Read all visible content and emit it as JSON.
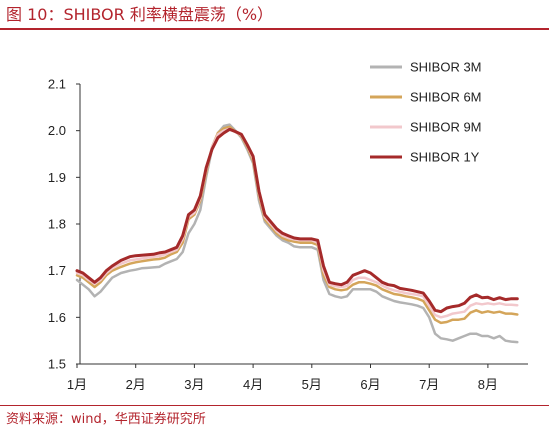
{
  "header": {
    "title": "图 10：SHIBOR 利率横盘震荡（%）"
  },
  "footer": {
    "source": "资料来源：wind，华西证券研究所"
  },
  "colors": {
    "accent": "#b3242d"
  },
  "chart_data": {
    "type": "line",
    "title": "图 10：SHIBOR 利率横盘震荡（%）",
    "xlabel": "",
    "ylabel": "",
    "x_ticks": [
      "1月",
      "2月",
      "3月",
      "4月",
      "5月",
      "6月",
      "7月",
      "8月"
    ],
    "xlim": [
      0,
      7.6
    ],
    "ylim": [
      1.5,
      2.1
    ],
    "y_ticks": [
      "1.5",
      "1.6",
      "1.7",
      "1.8",
      "1.9",
      "2.0",
      "2.1"
    ],
    "legend_position": "top-right",
    "grid": false,
    "series": [
      {
        "name": "SHIBOR 3M",
        "color": "#b3b3b3",
        "x": [
          0,
          0.1,
          0.2,
          0.3,
          0.4,
          0.5,
          0.6,
          0.75,
          0.9,
          1.0,
          1.1,
          1.2,
          1.3,
          1.4,
          1.5,
          1.6,
          1.7,
          1.8,
          1.9,
          2.0,
          2.1,
          2.2,
          2.3,
          2.4,
          2.5,
          2.6,
          2.7,
          2.8,
          2.9,
          3.0,
          3.1,
          3.2,
          3.3,
          3.4,
          3.5,
          3.6,
          3.7,
          3.8,
          3.9,
          4.0,
          4.1,
          4.2,
          4.3,
          4.4,
          4.5,
          4.6,
          4.7,
          4.8,
          4.9,
          5.0,
          5.1,
          5.2,
          5.3,
          5.4,
          5.5,
          5.6,
          5.7,
          5.8,
          5.9,
          6.0,
          6.1,
          6.2,
          6.3,
          6.4,
          6.5,
          6.6,
          6.7,
          6.8,
          6.9,
          7.0,
          7.1,
          7.2,
          7.3,
          7.4,
          7.5
        ],
        "y": [
          1.68,
          1.67,
          1.66,
          1.645,
          1.655,
          1.67,
          1.685,
          1.695,
          1.7,
          1.702,
          1.705,
          1.706,
          1.707,
          1.708,
          1.715,
          1.72,
          1.725,
          1.74,
          1.78,
          1.8,
          1.83,
          1.9,
          1.96,
          1.995,
          2.01,
          2.013,
          2.0,
          1.985,
          1.96,
          1.93,
          1.85,
          1.805,
          1.79,
          1.775,
          1.765,
          1.76,
          1.752,
          1.75,
          1.75,
          1.75,
          1.745,
          1.68,
          1.65,
          1.645,
          1.642,
          1.645,
          1.66,
          1.66,
          1.66,
          1.66,
          1.655,
          1.645,
          1.64,
          1.635,
          1.632,
          1.63,
          1.628,
          1.625,
          1.62,
          1.6,
          1.565,
          1.555,
          1.553,
          1.55,
          1.555,
          1.56,
          1.565,
          1.565,
          1.56,
          1.56,
          1.555,
          1.56,
          1.55,
          1.548,
          1.547
        ]
      },
      {
        "name": "SHIBOR 6M",
        "color": "#d4a55a",
        "x": [
          0,
          0.1,
          0.2,
          0.3,
          0.4,
          0.5,
          0.6,
          0.75,
          0.9,
          1.0,
          1.1,
          1.2,
          1.3,
          1.4,
          1.5,
          1.6,
          1.7,
          1.8,
          1.9,
          2.0,
          2.1,
          2.2,
          2.3,
          2.4,
          2.5,
          2.6,
          2.7,
          2.8,
          2.9,
          3.0,
          3.1,
          3.2,
          3.3,
          3.4,
          3.5,
          3.6,
          3.7,
          3.8,
          3.9,
          4.0,
          4.1,
          4.2,
          4.3,
          4.4,
          4.5,
          4.6,
          4.7,
          4.8,
          4.9,
          5.0,
          5.1,
          5.2,
          5.3,
          5.4,
          5.5,
          5.6,
          5.7,
          5.8,
          5.9,
          6.0,
          6.1,
          6.2,
          6.3,
          6.4,
          6.5,
          6.6,
          6.7,
          6.8,
          6.9,
          7.0,
          7.1,
          7.2,
          7.3,
          7.4,
          7.5
        ],
        "y": [
          1.69,
          1.685,
          1.675,
          1.665,
          1.675,
          1.69,
          1.7,
          1.708,
          1.715,
          1.718,
          1.72,
          1.722,
          1.724,
          1.725,
          1.728,
          1.735,
          1.74,
          1.76,
          1.81,
          1.82,
          1.85,
          1.91,
          1.965,
          1.995,
          2.005,
          2.008,
          1.998,
          1.988,
          1.965,
          1.935,
          1.86,
          1.81,
          1.795,
          1.78,
          1.77,
          1.765,
          1.762,
          1.76,
          1.76,
          1.76,
          1.755,
          1.69,
          1.665,
          1.66,
          1.658,
          1.66,
          1.67,
          1.675,
          1.675,
          1.672,
          1.668,
          1.66,
          1.655,
          1.65,
          1.648,
          1.645,
          1.643,
          1.64,
          1.635,
          1.615,
          1.595,
          1.588,
          1.59,
          1.595,
          1.595,
          1.597,
          1.61,
          1.615,
          1.61,
          1.613,
          1.61,
          1.612,
          1.608,
          1.608,
          1.606
        ]
      },
      {
        "name": "SHIBOR 9M",
        "color": "#f2c8cc",
        "x": [
          0,
          0.1,
          0.2,
          0.3,
          0.4,
          0.5,
          0.6,
          0.75,
          0.9,
          1.0,
          1.1,
          1.2,
          1.3,
          1.4,
          1.5,
          1.6,
          1.7,
          1.8,
          1.9,
          2.0,
          2.1,
          2.2,
          2.3,
          2.4,
          2.5,
          2.6,
          2.7,
          2.8,
          2.9,
          3.0,
          3.1,
          3.2,
          3.3,
          3.4,
          3.5,
          3.6,
          3.7,
          3.8,
          3.9,
          4.0,
          4.1,
          4.2,
          4.3,
          4.4,
          4.5,
          4.6,
          4.7,
          4.8,
          4.9,
          5.0,
          5.1,
          5.2,
          5.3,
          5.4,
          5.5,
          5.6,
          5.7,
          5.8,
          5.9,
          6.0,
          6.1,
          6.2,
          6.3,
          6.4,
          6.5,
          6.6,
          6.7,
          6.8,
          6.9,
          7.0,
          7.1,
          7.2,
          7.3,
          7.4,
          7.5
        ],
        "y": [
          1.695,
          1.69,
          1.68,
          1.672,
          1.68,
          1.695,
          1.705,
          1.715,
          1.722,
          1.724,
          1.726,
          1.728,
          1.73,
          1.731,
          1.735,
          1.74,
          1.745,
          1.768,
          1.815,
          1.824,
          1.855,
          1.915,
          1.965,
          1.992,
          2.0,
          2.004,
          1.997,
          1.99,
          1.968,
          1.94,
          1.865,
          1.815,
          1.8,
          1.785,
          1.775,
          1.77,
          1.767,
          1.765,
          1.765,
          1.765,
          1.76,
          1.7,
          1.67,
          1.667,
          1.665,
          1.667,
          1.68,
          1.685,
          1.685,
          1.68,
          1.675,
          1.668,
          1.662,
          1.658,
          1.655,
          1.652,
          1.65,
          1.648,
          1.645,
          1.625,
          1.605,
          1.6,
          1.603,
          1.608,
          1.61,
          1.612,
          1.625,
          1.63,
          1.628,
          1.63,
          1.628,
          1.63,
          1.627,
          1.627,
          1.626
        ]
      },
      {
        "name": "SHIBOR 1Y",
        "color": "#a52a2a",
        "x": [
          0,
          0.1,
          0.2,
          0.3,
          0.4,
          0.5,
          0.6,
          0.75,
          0.9,
          1.0,
          1.1,
          1.2,
          1.3,
          1.4,
          1.5,
          1.6,
          1.7,
          1.8,
          1.9,
          2.0,
          2.1,
          2.2,
          2.3,
          2.4,
          2.5,
          2.6,
          2.7,
          2.8,
          2.9,
          3.0,
          3.1,
          3.2,
          3.3,
          3.4,
          3.5,
          3.6,
          3.7,
          3.8,
          3.9,
          4.0,
          4.1,
          4.2,
          4.3,
          4.4,
          4.5,
          4.6,
          4.7,
          4.8,
          4.9,
          5.0,
          5.1,
          5.2,
          5.3,
          5.4,
          5.5,
          5.6,
          5.7,
          5.8,
          5.9,
          6.0,
          6.1,
          6.2,
          6.3,
          6.4,
          6.5,
          6.6,
          6.7,
          6.8,
          6.9,
          7.0,
          7.1,
          7.2,
          7.3,
          7.4,
          7.5
        ],
        "y": [
          1.7,
          1.695,
          1.685,
          1.675,
          1.685,
          1.7,
          1.71,
          1.722,
          1.73,
          1.732,
          1.733,
          1.734,
          1.735,
          1.738,
          1.74,
          1.745,
          1.75,
          1.775,
          1.82,
          1.83,
          1.86,
          1.92,
          1.96,
          1.985,
          1.995,
          2.003,
          1.998,
          1.992,
          1.97,
          1.945,
          1.87,
          1.82,
          1.805,
          1.79,
          1.78,
          1.775,
          1.77,
          1.768,
          1.768,
          1.768,
          1.765,
          1.71,
          1.675,
          1.672,
          1.67,
          1.675,
          1.69,
          1.695,
          1.7,
          1.695,
          1.685,
          1.675,
          1.67,
          1.668,
          1.662,
          1.66,
          1.658,
          1.655,
          1.652,
          1.635,
          1.615,
          1.612,
          1.62,
          1.623,
          1.625,
          1.63,
          1.643,
          1.648,
          1.642,
          1.643,
          1.638,
          1.642,
          1.638,
          1.64,
          1.64
        ]
      }
    ]
  }
}
